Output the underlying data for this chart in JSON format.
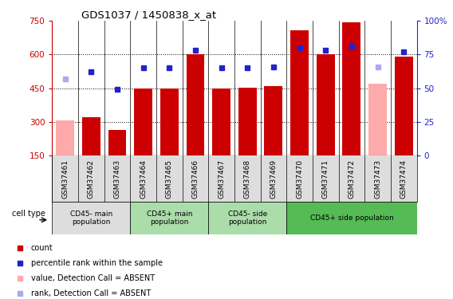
{
  "title": "GDS1037 / 1450838_x_at",
  "samples": [
    "GSM37461",
    "GSM37462",
    "GSM37463",
    "GSM37464",
    "GSM37465",
    "GSM37466",
    "GSM37467",
    "GSM37468",
    "GSM37469",
    "GSM37470",
    "GSM37471",
    "GSM37472",
    "GSM37473",
    "GSM37474"
  ],
  "bar_values": [
    305,
    322,
    263,
    450,
    450,
    600,
    450,
    452,
    461,
    710,
    600,
    745,
    470,
    590
  ],
  "bar_absent": [
    true,
    false,
    false,
    false,
    false,
    false,
    false,
    false,
    false,
    false,
    false,
    false,
    true,
    false
  ],
  "rank_values": [
    57,
    62,
    49,
    65,
    65,
    78,
    65,
    65,
    66,
    80,
    78,
    81,
    66,
    77
  ],
  "rank_absent": [
    true,
    false,
    false,
    false,
    false,
    false,
    false,
    false,
    false,
    false,
    false,
    false,
    true,
    false
  ],
  "bar_color_normal": "#cc0000",
  "bar_color_absent": "#ffaaaa",
  "rank_color_normal": "#2222cc",
  "rank_color_absent": "#aaaaee",
  "ylim_left": [
    150,
    750
  ],
  "ylim_right": [
    0,
    100
  ],
  "yticks_left": [
    150,
    300,
    450,
    600,
    750
  ],
  "yticks_right": [
    0,
    25,
    50,
    75,
    100
  ],
  "ytick_labels_right": [
    "0",
    "25",
    "50",
    "75",
    "100%"
  ],
  "cell_groups": [
    {
      "label": "CD45- main\npopulation",
      "start": 0,
      "end": 2,
      "color": "#dddddd"
    },
    {
      "label": "CD45+ main\npopulation",
      "start": 3,
      "end": 5,
      "color": "#aaddaa"
    },
    {
      "label": "CD45- side\npopulation",
      "start": 6,
      "end": 8,
      "color": "#aaddaa"
    },
    {
      "label": "CD45+ side population",
      "start": 9,
      "end": 13,
      "color": "#55bb55"
    }
  ],
  "background_color": "#ffffff",
  "left_axis_color": "#cc0000",
  "right_axis_color": "#2222cc"
}
